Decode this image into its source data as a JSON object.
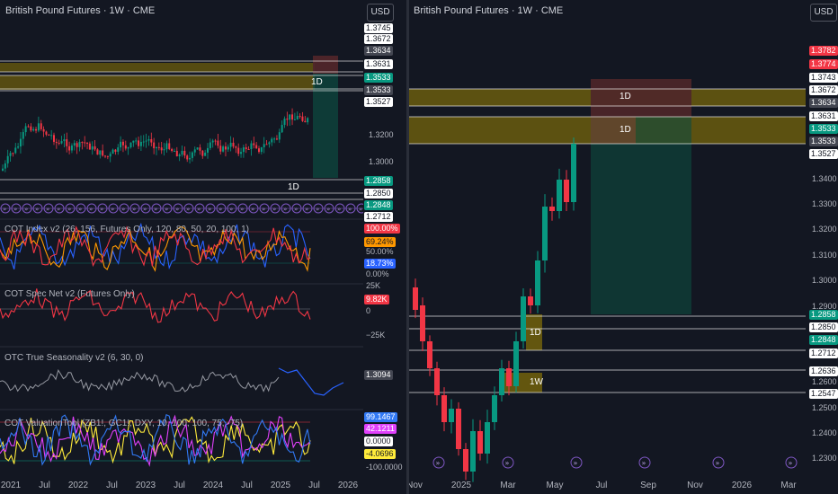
{
  "left": {
    "title": "British Pound Futures · 1W · CME",
    "currency": "USD",
    "zone_labels": {
      "d1_upper": "1D",
      "d1_lower": "1D"
    },
    "price_badges": [
      {
        "text": "1.3745",
        "style": "white",
        "top": 26
      },
      {
        "text": "1.3672",
        "style": "white",
        "top": 38
      },
      {
        "text": "1.3634",
        "style": "gray",
        "top": 51
      },
      {
        "text": "1.3631",
        "style": "white",
        "top": 66
      },
      {
        "text": "1.3533",
        "style": "green",
        "top": 81
      },
      {
        "text": "1.3533",
        "style": "gray",
        "top": 95
      },
      {
        "text": "1.3527",
        "style": "white",
        "top": 108
      }
    ],
    "price_axis": [
      {
        "text": "1.3200",
        "top": 145
      },
      {
        "text": "1.3000",
        "top": 175
      }
    ],
    "lower_badges": [
      {
        "text": "1.2858",
        "style": "green",
        "top": 196
      },
      {
        "text": "1.2850",
        "style": "white",
        "top": 210
      },
      {
        "text": "1.2848",
        "style": "green",
        "top": 223
      },
      {
        "text": "1.2712",
        "style": "white",
        "top": 236
      }
    ],
    "indicators": [
      {
        "label": "COT Index v2 (26, 156, Futures Only, 120, 80, 50, 20, 100, 1)",
        "top": 250,
        "badges": [
          {
            "text": "100.00%",
            "style": "red",
            "top": 249
          },
          {
            "text": "69.24%",
            "style": "orange",
            "top": 264
          },
          {
            "text": "50.00%",
            "style": "none",
            "top": 275
          },
          {
            "text": "18.73%",
            "style": "blue",
            "top": 288
          },
          {
            "text": "0.00%",
            "style": "none",
            "top": 300
          }
        ]
      },
      {
        "label": "COT Spec Net v2 (Futures Only)",
        "top": 322,
        "badges": [
          {
            "text": "25K",
            "style": "none",
            "top": 313
          },
          {
            "text": "9.82K",
            "style": "red",
            "top": 328
          },
          {
            "text": "0",
            "style": "none",
            "top": 341
          },
          {
            "text": "−25K",
            "style": "none",
            "top": 368
          }
        ]
      },
      {
        "label": "OTC True Seasonality v2 (6, 30, 0)",
        "top": 393,
        "badges": [
          {
            "text": "1.3094",
            "style": "gray",
            "top": 412
          }
        ]
      },
      {
        "label": "COT ValuationTool (ZB1!, GC1!, DXY, 10, 100, 100, 75, -75)",
        "top": 466,
        "badges": [
          {
            "text": "99.1467",
            "style": "cyan",
            "top": 459
          },
          {
            "text": "42.1211",
            "style": "magenta",
            "top": 472
          },
          {
            "text": "0.0000",
            "style": "white",
            "top": 486
          },
          {
            "text": "-4.0696",
            "style": "yellow",
            "top": 500
          },
          {
            "text": "-100.0000",
            "style": "none",
            "top": 515
          }
        ]
      }
    ],
    "x_axis": [
      "2021",
      "Jul",
      "2022",
      "Jul",
      "2023",
      "Jul",
      "2024",
      "Jul",
      "2025",
      "Jul",
      "2026"
    ]
  },
  "right": {
    "title": "British Pound Futures · 1W · CME",
    "currency": "USD",
    "zone_labels": {
      "d1_top": "1D",
      "d1_mid": "1D",
      "d1_low": "1D",
      "w1": "1W"
    },
    "price_badges": [
      {
        "text": "1.3782",
        "style": "red",
        "top": 51
      },
      {
        "text": "1.3774",
        "style": "red",
        "top": 66
      },
      {
        "text": "1.3743",
        "style": "white",
        "top": 81
      },
      {
        "text": "1.3672",
        "style": "white",
        "top": 95
      },
      {
        "text": "1.3634",
        "style": "gray",
        "top": 109
      },
      {
        "text": "1.3631",
        "style": "white",
        "top": 124
      },
      {
        "text": "1.3533",
        "style": "green",
        "top": 138
      },
      {
        "text": "1.3533",
        "style": "gray",
        "top": 152
      },
      {
        "text": "1.3527",
        "style": "white",
        "top": 166
      },
      {
        "text": "1.2858",
        "style": "green",
        "top": 345
      },
      {
        "text": "1.2850",
        "style": "white",
        "top": 359
      },
      {
        "text": "1.2848",
        "style": "green",
        "top": 373
      },
      {
        "text": "1.2712",
        "style": "white",
        "top": 388
      },
      {
        "text": "1.2636",
        "style": "white",
        "top": 408
      },
      {
        "text": "1.2547",
        "style": "white",
        "top": 433
      }
    ],
    "price_axis": [
      {
        "text": "1.3400",
        "top": 194
      },
      {
        "text": "1.3300",
        "top": 222
      },
      {
        "text": "1.3200",
        "top": 250
      },
      {
        "text": "1.3100",
        "top": 279
      },
      {
        "text": "1.3000",
        "top": 307
      },
      {
        "text": "1.2900",
        "top": 336
      },
      {
        "text": "1.2600",
        "top": 420
      },
      {
        "text": "1.2500",
        "top": 449
      },
      {
        "text": "1.2400",
        "top": 477
      },
      {
        "text": "1.2300",
        "top": 505
      }
    ],
    "x_axis": [
      "Nov",
      "2025",
      "Mar",
      "May",
      "Jul",
      "Sep",
      "Nov",
      "2026",
      "Mar"
    ]
  },
  "colors": {
    "bg": "#131722",
    "up": "#089981",
    "down": "#f23645",
    "zone_gold": "#a68b00",
    "target_green": "#0d4b40",
    "stop_red": "#5c1f26"
  }
}
